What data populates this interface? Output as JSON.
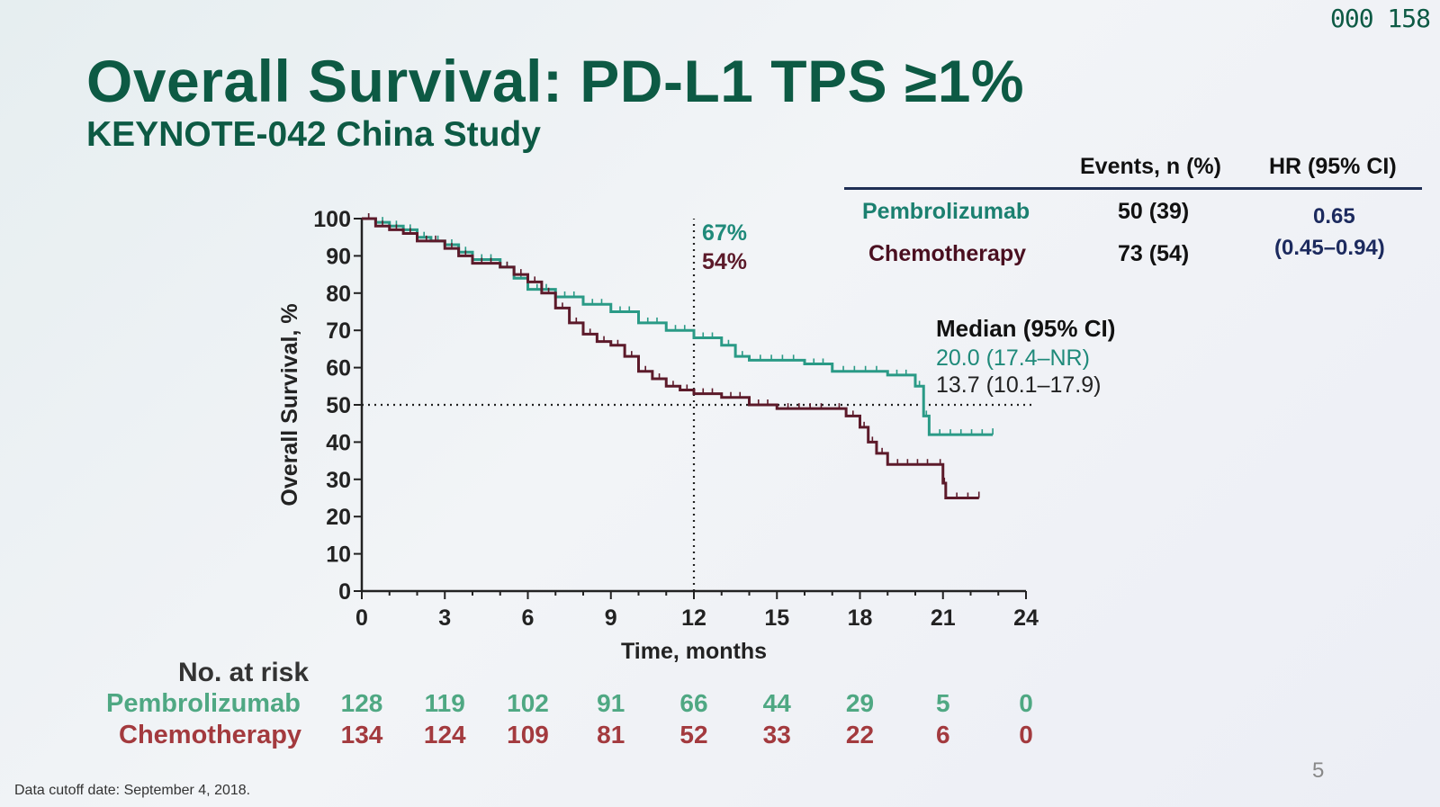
{
  "slide": {
    "title": "Overall Survival: PD-L1 TPS ≥1%",
    "subtitle": "KEYNOTE-042 China Study",
    "counter": "000 158",
    "page_number": "5",
    "footnote": "Data cutoff date: September 4, 2018.",
    "colors": {
      "pembrolizumab": "#2a9a86",
      "chemotherapy": "#5c1a2a",
      "title": "#0d5a44"
    }
  },
  "table": {
    "headers": [
      "Events, n (%)",
      "HR (95% CI)"
    ],
    "rows": [
      {
        "arm": "Pembrolizumab",
        "events": "50 (39)"
      },
      {
        "arm": "Chemotherapy",
        "events": "73 (54)"
      }
    ],
    "hr_value": "0.65",
    "hr_ci": "(0.45–0.94)"
  },
  "median": {
    "header": "Median (95% CI)",
    "pembrolizumab": "20.0 (17.4–NR)",
    "chemotherapy": "13.7 (10.1–17.9)"
  },
  "landmark": {
    "pembrolizumab": "67%",
    "chemotherapy": "54%"
  },
  "at_risk": {
    "header": "No. at risk",
    "pembrolizumab_label": "Pembrolizumab",
    "chemotherapy_label": "Chemotherapy",
    "pembrolizumab": [
      "128",
      "119",
      "102",
      "91",
      "66",
      "44",
      "29",
      "5",
      "0"
    ],
    "chemotherapy": [
      "134",
      "124",
      "109",
      "81",
      "52",
      "33",
      "22",
      "6",
      "0"
    ]
  },
  "chart_data": {
    "type": "line",
    "xlabel": "Time, months",
    "ylabel": "Overall Survival, %",
    "xlim": [
      0,
      24
    ],
    "ylim": [
      0,
      100
    ],
    "xticks": [
      0,
      3,
      6,
      9,
      12,
      15,
      18,
      21,
      24
    ],
    "yticks": [
      0,
      10,
      20,
      30,
      40,
      50,
      60,
      70,
      80,
      90,
      100
    ],
    "reference_lines": {
      "x": 12,
      "y": 50
    },
    "series": [
      {
        "name": "Pembrolizumab",
        "color": "#2a9a86",
        "points": [
          [
            0,
            100
          ],
          [
            0.5,
            99
          ],
          [
            1,
            98
          ],
          [
            1.5,
            97
          ],
          [
            2,
            95
          ],
          [
            2.5,
            94
          ],
          [
            3,
            93
          ],
          [
            3.5,
            91
          ],
          [
            4,
            89
          ],
          [
            5,
            87
          ],
          [
            5.5,
            84
          ],
          [
            6,
            81
          ],
          [
            7,
            79
          ],
          [
            8,
            77
          ],
          [
            9,
            75
          ],
          [
            10,
            72
          ],
          [
            11,
            70
          ],
          [
            12,
            68
          ],
          [
            13,
            66
          ],
          [
            13.5,
            63
          ],
          [
            14,
            62
          ],
          [
            16,
            61
          ],
          [
            17,
            59
          ],
          [
            19,
            58
          ],
          [
            20,
            55
          ],
          [
            20.3,
            47
          ],
          [
            20.5,
            42
          ],
          [
            22.8,
            42
          ]
        ]
      },
      {
        "name": "Chemotherapy",
        "color": "#5c1a2a",
        "points": [
          [
            0,
            100
          ],
          [
            0.5,
            98
          ],
          [
            1,
            97
          ],
          [
            1.5,
            96
          ],
          [
            2,
            94
          ],
          [
            3,
            92
          ],
          [
            3.5,
            90
          ],
          [
            4,
            88
          ],
          [
            5,
            87
          ],
          [
            5.5,
            85
          ],
          [
            6,
            83
          ],
          [
            6.5,
            80
          ],
          [
            7,
            76
          ],
          [
            7.5,
            72
          ],
          [
            8,
            69
          ],
          [
            8.5,
            67
          ],
          [
            9,
            66
          ],
          [
            9.5,
            63
          ],
          [
            10,
            59
          ],
          [
            10.5,
            57
          ],
          [
            11,
            55
          ],
          [
            11.5,
            54
          ],
          [
            12,
            53
          ],
          [
            13,
            52
          ],
          [
            14,
            50
          ],
          [
            15,
            49
          ],
          [
            17,
            49
          ],
          [
            17.5,
            47
          ],
          [
            18,
            44
          ],
          [
            18.3,
            40
          ],
          [
            18.6,
            37
          ],
          [
            19,
            34
          ],
          [
            20.8,
            34
          ],
          [
            21,
            29
          ],
          [
            21.1,
            25
          ],
          [
            22.3,
            25
          ]
        ]
      }
    ]
  }
}
